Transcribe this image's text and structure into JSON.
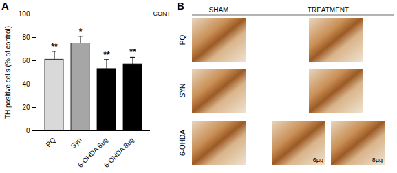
{
  "panel_labels": [
    "A",
    "B"
  ],
  "chart_data": {
    "type": "bar",
    "categories": [
      "PQ",
      "Syn",
      "6-OHDA 6ug",
      "6-OHDA 8ug"
    ],
    "values": [
      61,
      75,
      53,
      57
    ],
    "errors": [
      7,
      6,
      8,
      6
    ],
    "significance": [
      "**",
      "*",
      "**",
      "**"
    ],
    "colors": [
      "#d9d9d9",
      "#a6a6a6",
      "#000000",
      "#000000"
    ],
    "y_label": "TH positive cells (% of control)",
    "ylim": [
      0,
      100
    ],
    "yticks": [
      0,
      20,
      40,
      60,
      80,
      100
    ],
    "reference_line": {
      "value": 100,
      "label": "CONT",
      "line_style": "dashed"
    }
  },
  "image_grid": {
    "column_headers": [
      "SHAM",
      "TREATMENT"
    ],
    "rows": [
      {
        "label": "PQ",
        "images": [
          {
            "group": "SHAM"
          },
          {
            "group": "TREATMENT"
          }
        ]
      },
      {
        "label": "SYN",
        "images": [
          {
            "group": "SHAM"
          },
          {
            "group": "TREATMENT"
          }
        ]
      },
      {
        "label": "6-OHDA",
        "images": [
          {
            "group": "SHAM"
          },
          {
            "group": "TREATMENT",
            "label": "6µg"
          },
          {
            "group": "TREATMENT",
            "label": "8µg"
          }
        ]
      }
    ]
  }
}
